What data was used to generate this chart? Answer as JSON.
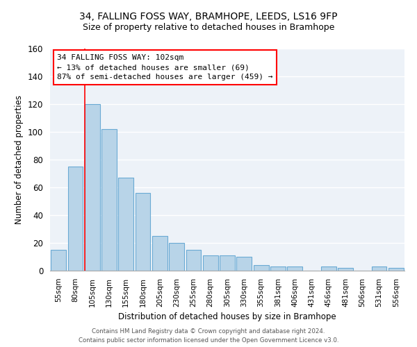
{
  "title": "34, FALLING FOSS WAY, BRAMHOPE, LEEDS, LS16 9FP",
  "subtitle": "Size of property relative to detached houses in Bramhope",
  "xlabel": "Distribution of detached houses by size in Bramhope",
  "ylabel": "Number of detached properties",
  "bar_color": "#b8d4e8",
  "bar_edge_color": "#6aaad4",
  "background_color": "#edf2f8",
  "grid_color": "white",
  "bin_labels": [
    "55sqm",
    "80sqm",
    "105sqm",
    "130sqm",
    "155sqm",
    "180sqm",
    "205sqm",
    "230sqm",
    "255sqm",
    "280sqm",
    "305sqm",
    "330sqm",
    "355sqm",
    "381sqm",
    "406sqm",
    "431sqm",
    "456sqm",
    "481sqm",
    "506sqm",
    "531sqm",
    "556sqm"
  ],
  "bar_values": [
    15,
    75,
    120,
    102,
    67,
    56,
    25,
    20,
    15,
    11,
    11,
    10,
    4,
    3,
    3,
    0,
    3,
    2,
    0,
    3,
    2
  ],
  "property_label": "34 FALLING FOSS WAY: 102sqm",
  "pct_smaller": 13,
  "n_smaller": 69,
  "pct_larger_semi": 87,
  "n_larger_semi": 459,
  "ylim": [
    0,
    160
  ],
  "yticks": [
    0,
    20,
    40,
    60,
    80,
    100,
    120,
    140,
    160
  ],
  "footer_line1": "Contains HM Land Registry data © Crown copyright and database right 2024.",
  "footer_line2": "Contains public sector information licensed under the Open Government Licence v3.0."
}
